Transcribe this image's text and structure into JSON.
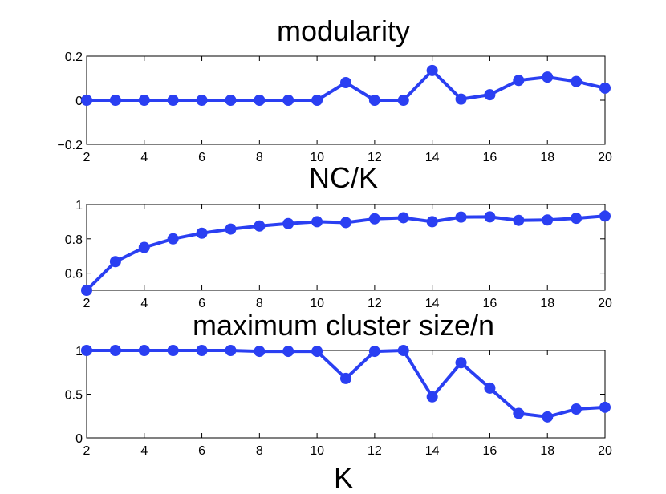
{
  "chart_data": [
    {
      "type": "line",
      "title": "modularity",
      "xlabel": "",
      "ylabel": "",
      "x": [
        2,
        3,
        4,
        5,
        6,
        7,
        8,
        9,
        10,
        11,
        12,
        13,
        14,
        15,
        16,
        17,
        18,
        19,
        20
      ],
      "values": [
        0,
        0,
        0,
        0,
        0,
        0,
        0,
        0,
        0,
        0.08,
        0,
        0,
        0.135,
        0.005,
        0.025,
        0.09,
        0.105,
        0.085,
        0.055
      ],
      "xlim": [
        2,
        20
      ],
      "ylim": [
        -0.2,
        0.2
      ],
      "xticks": [
        2,
        4,
        6,
        8,
        10,
        12,
        14,
        16,
        18,
        20
      ],
      "yticks": [
        -0.2,
        0,
        0.2
      ],
      "ytick_labels": [
        "−0.2",
        "0",
        "0.2"
      ],
      "color": "#2a3ff2"
    },
    {
      "type": "line",
      "title": "NC/K",
      "xlabel": "",
      "ylabel": "",
      "x": [
        2,
        3,
        4,
        5,
        6,
        7,
        8,
        9,
        10,
        11,
        12,
        13,
        14,
        15,
        16,
        17,
        18,
        19,
        20
      ],
      "values": [
        0.5,
        0.667,
        0.75,
        0.8,
        0.833,
        0.857,
        0.875,
        0.889,
        0.9,
        0.895,
        0.917,
        0.923,
        0.9,
        0.927,
        0.928,
        0.908,
        0.91,
        0.92,
        0.933
      ],
      "xlim": [
        2,
        20
      ],
      "ylim": [
        0.5,
        1
      ],
      "xticks": [
        2,
        4,
        6,
        8,
        10,
        12,
        14,
        16,
        18,
        20
      ],
      "yticks": [
        0.6,
        0.8,
        1
      ],
      "ytick_labels": [
        "0.6",
        "0.8",
        "1"
      ],
      "color": "#2a3ff2"
    },
    {
      "type": "line",
      "title": "maximum cluster size/n",
      "xlabel": "K",
      "ylabel": "",
      "x": [
        2,
        3,
        4,
        5,
        6,
        7,
        8,
        9,
        10,
        11,
        12,
        13,
        14,
        15,
        16,
        17,
        18,
        19,
        20
      ],
      "values": [
        1,
        1,
        1,
        1,
        1,
        1,
        0.99,
        0.99,
        0.99,
        0.68,
        0.99,
        1,
        0.47,
        0.86,
        0.57,
        0.28,
        0.24,
        0.33,
        0.35
      ],
      "xlim": [
        2,
        20
      ],
      "ylim": [
        0,
        1
      ],
      "xticks": [
        2,
        4,
        6,
        8,
        10,
        12,
        14,
        16,
        18,
        20
      ],
      "yticks": [
        0,
        0.5,
        1
      ],
      "ytick_labels": [
        "0",
        "0.5",
        "1"
      ],
      "color": "#2a3ff2"
    }
  ]
}
